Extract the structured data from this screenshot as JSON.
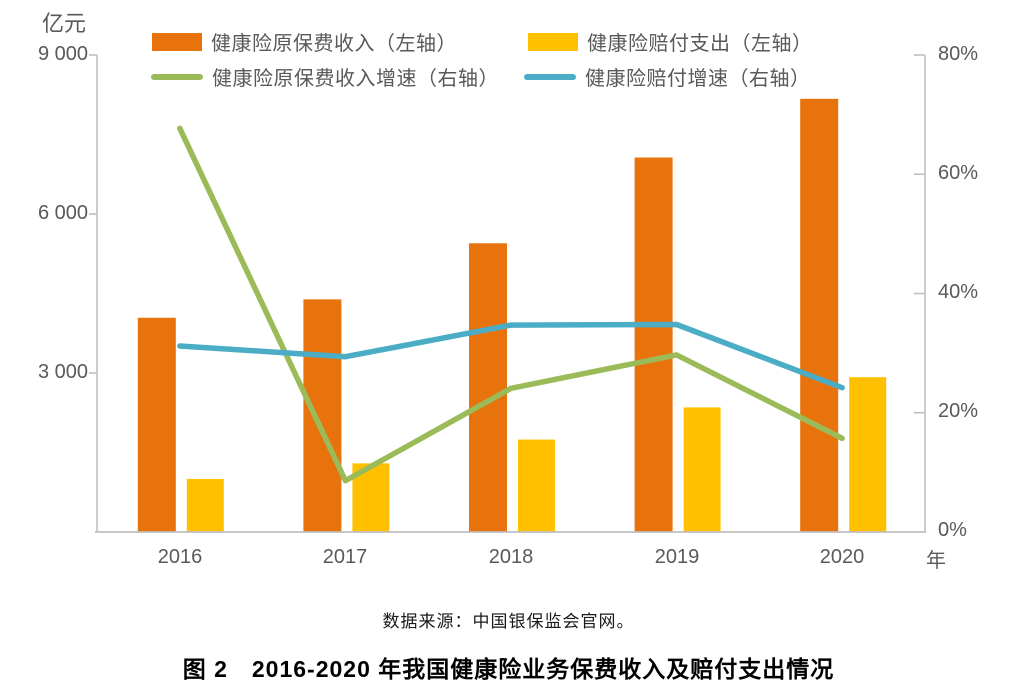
{
  "legend": {
    "items": [
      {
        "label": "健康险原保费收入（左轴）",
        "swatch": "bar",
        "color": "#E8720C"
      },
      {
        "label": "健康险赔付支出（左轴）",
        "swatch": "bar",
        "color": "#FFC000"
      },
      {
        "label": "健康险原保费收入增速（右轴）",
        "swatch": "line",
        "color": "#9BBB59"
      },
      {
        "label": "健康险赔付增速（右轴）",
        "swatch": "line",
        "color": "#4BACC6"
      }
    ]
  },
  "chart_data": {
    "type": "combo-bar-line",
    "categories": [
      "2016",
      "2017",
      "2018",
      "2019",
      "2020"
    ],
    "series": [
      {
        "key": "premium-income",
        "name": "健康险原保费收入（左轴）",
        "chart": "bar",
        "axis": "left",
        "color": "#E8720C",
        "values": [
          4042,
          4389,
          5448,
          7066,
          8173
        ]
      },
      {
        "key": "claims-expense",
        "name": "健康险赔付支出（左轴）",
        "chart": "bar",
        "axis": "left",
        "color": "#FFC000",
        "values": [
          1001,
          1295,
          1744,
          2351,
          2921
        ]
      },
      {
        "key": "premium-growth",
        "name": "健康险原保费收入增速（右轴）",
        "chart": "line",
        "axis": "right",
        "color": "#9BBB59",
        "values": [
          67.7,
          8.6,
          24.1,
          29.7,
          15.7
        ]
      },
      {
        "key": "claims-growth",
        "name": "健康险赔付增速（右轴）",
        "chart": "line",
        "axis": "right",
        "color": "#4BACC6",
        "values": [
          31.2,
          29.4,
          34.7,
          34.8,
          24.2
        ]
      }
    ],
    "left_axis": {
      "unit": "亿元",
      "min": 0,
      "max": 9000,
      "ticks": [
        {
          "value": 9000,
          "label": "9 000"
        },
        {
          "value": 6000,
          "label": "6 000"
        },
        {
          "value": 3000,
          "label": "3 000"
        }
      ]
    },
    "right_axis": {
      "min": 0,
      "max": 80,
      "ticks": [
        {
          "value": 80,
          "label": "80%"
        },
        {
          "value": 60,
          "label": "60%"
        },
        {
          "value": 40,
          "label": "40%"
        },
        {
          "value": 20,
          "label": "20%"
        },
        {
          "value": 0,
          "label": "0%"
        }
      ]
    },
    "x_axis": {
      "unit": "年"
    },
    "grid": false,
    "legend_position": "top"
  },
  "source_note": "数据来源：中国银保监会官网。",
  "caption": "图 2　2016-2020 年我国健康险业务保费收入及赔付支出情况",
  "colors": {
    "axis_line": "#BFBFBF",
    "tick_text": "#595959",
    "caption_text": "#000000"
  }
}
